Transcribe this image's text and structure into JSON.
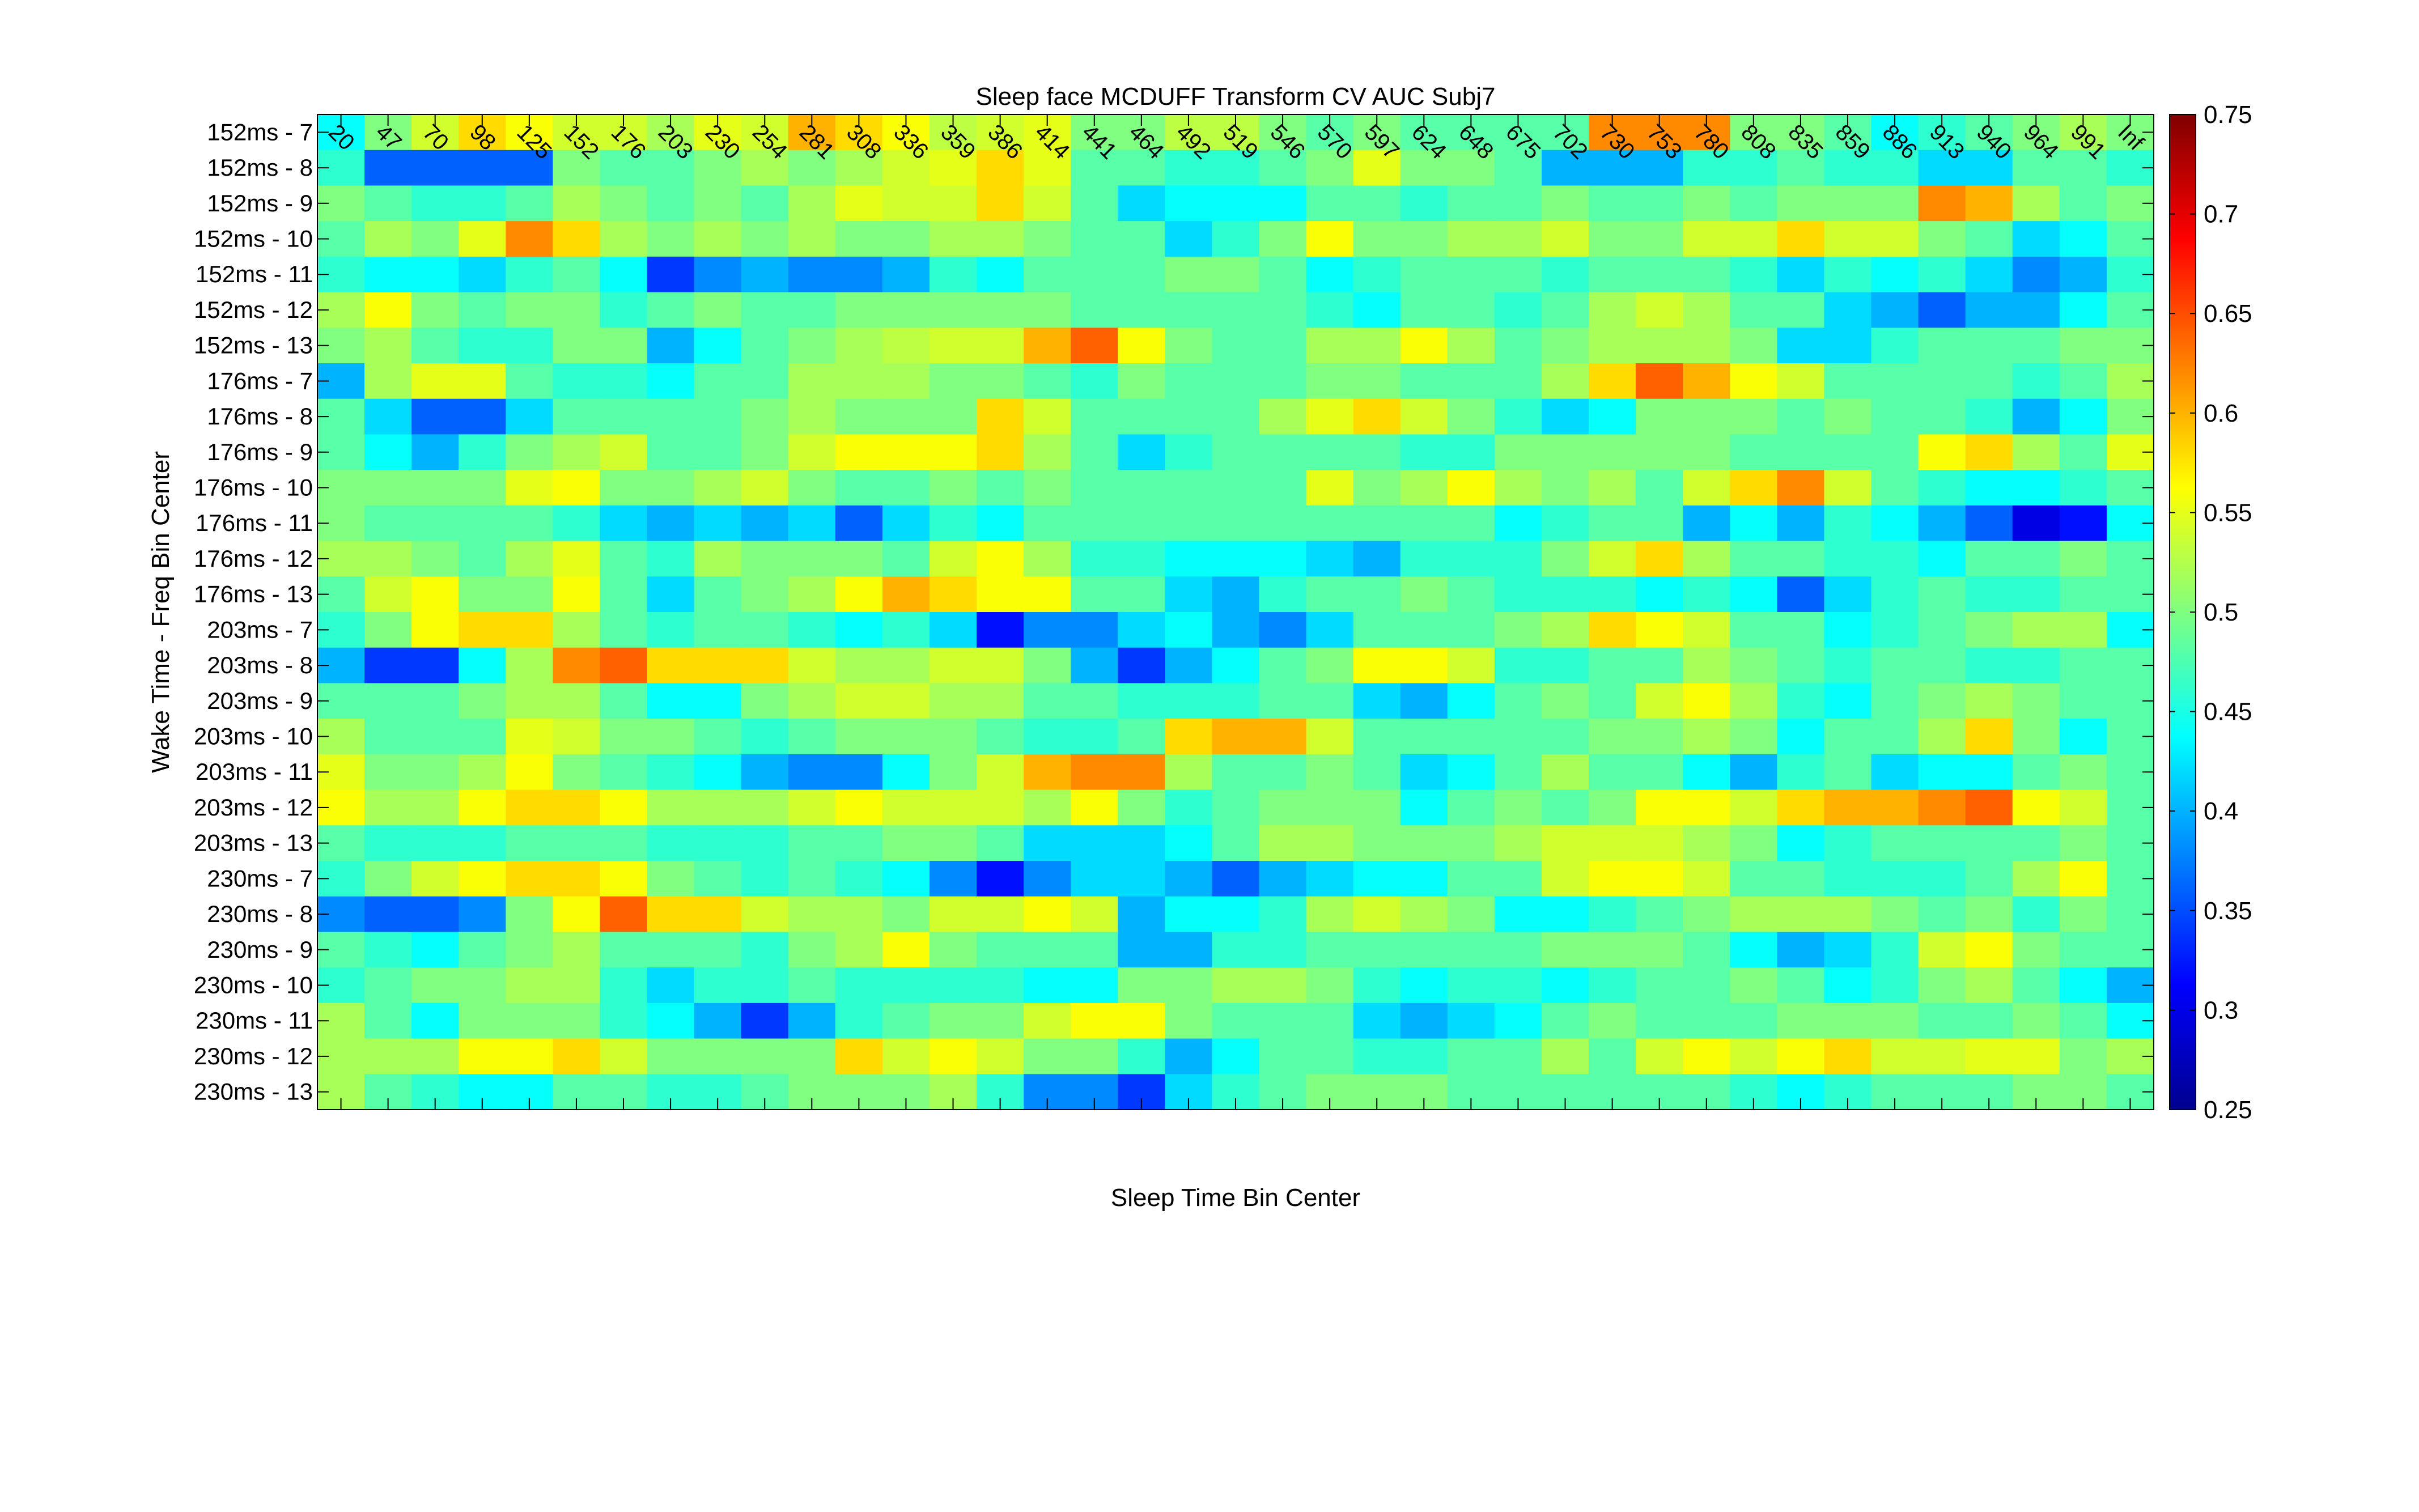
{
  "chart_data": {
    "type": "heatmap",
    "title": "Sleep face MCDUFF Transform CV AUC Subj7",
    "xlabel": "Sleep Time Bin Center",
    "ylabel": "Wake Time - Freq Bin Center",
    "x_categories": [
      "20",
      "47",
      "70",
      "98",
      "125",
      "152",
      "176",
      "203",
      "230",
      "254",
      "281",
      "308",
      "336",
      "359",
      "386",
      "414",
      "441",
      "464",
      "492",
      "519",
      "546",
      "570",
      "597",
      "624",
      "648",
      "675",
      "702",
      "730",
      "753",
      "780",
      "808",
      "835",
      "859",
      "886",
      "913",
      "940",
      "964",
      "991",
      "Inf"
    ],
    "y_categories": [
      "152ms - 7",
      "152ms - 8",
      "152ms - 9",
      "152ms - 10",
      "152ms - 11",
      "152ms - 12",
      "152ms - 13",
      "176ms - 7",
      "176ms - 8",
      "176ms - 9",
      "176ms - 10",
      "176ms - 11",
      "176ms - 12",
      "176ms - 13",
      "203ms - 7",
      "203ms - 8",
      "203ms - 9",
      "203ms - 10",
      "203ms - 11",
      "203ms - 12",
      "203ms - 13",
      "230ms - 7",
      "230ms - 8",
      "230ms - 9",
      "230ms - 10",
      "230ms - 11",
      "230ms - 12",
      "230ms - 13"
    ],
    "colorbar": {
      "ticks": [
        "0.25",
        "0.3",
        "0.35",
        "0.4",
        "0.45",
        "0.5",
        "0.55",
        "0.6",
        "0.65",
        "0.7",
        "0.75"
      ],
      "range": [
        0.25,
        0.75
      ],
      "colormap": "jet"
    },
    "values": [
      [
        0.44,
        0.5,
        0.54,
        0.58,
        0.56,
        0.54,
        0.54,
        0.52,
        0.55,
        0.54,
        0.6,
        0.58,
        0.56,
        0.53,
        0.54,
        0.55,
        0.5,
        0.5,
        0.53,
        0.53,
        0.5,
        0.48,
        0.5,
        0.48,
        0.48,
        0.48,
        0.48,
        0.62,
        0.62,
        0.62,
        0.5,
        0.5,
        0.48,
        0.44,
        0.46,
        0.48,
        0.5,
        0.52,
        0.5
      ],
      [
        0.46,
        0.36,
        0.36,
        0.36,
        0.36,
        0.5,
        0.48,
        0.48,
        0.5,
        0.52,
        0.5,
        0.52,
        0.54,
        0.55,
        0.58,
        0.55,
        0.48,
        0.48,
        0.46,
        0.46,
        0.48,
        0.5,
        0.55,
        0.5,
        0.5,
        0.48,
        0.4,
        0.4,
        0.4,
        0.46,
        0.46,
        0.48,
        0.46,
        0.46,
        0.42,
        0.42,
        0.48,
        0.48,
        0.46
      ],
      [
        0.5,
        0.48,
        0.46,
        0.46,
        0.48,
        0.52,
        0.5,
        0.48,
        0.5,
        0.48,
        0.52,
        0.55,
        0.54,
        0.54,
        0.58,
        0.54,
        0.48,
        0.42,
        0.44,
        0.44,
        0.44,
        0.48,
        0.48,
        0.46,
        0.48,
        0.48,
        0.5,
        0.48,
        0.48,
        0.5,
        0.48,
        0.5,
        0.5,
        0.5,
        0.62,
        0.6,
        0.52,
        0.48,
        0.5
      ],
      [
        0.48,
        0.52,
        0.5,
        0.55,
        0.62,
        0.58,
        0.52,
        0.5,
        0.52,
        0.5,
        0.52,
        0.5,
        0.5,
        0.52,
        0.52,
        0.5,
        0.48,
        0.48,
        0.42,
        0.46,
        0.5,
        0.56,
        0.5,
        0.5,
        0.52,
        0.52,
        0.54,
        0.5,
        0.5,
        0.54,
        0.54,
        0.58,
        0.54,
        0.54,
        0.5,
        0.48,
        0.42,
        0.44,
        0.48
      ],
      [
        0.46,
        0.44,
        0.44,
        0.42,
        0.46,
        0.48,
        0.44,
        0.34,
        0.38,
        0.4,
        0.38,
        0.38,
        0.4,
        0.46,
        0.44,
        0.48,
        0.48,
        0.48,
        0.5,
        0.5,
        0.48,
        0.44,
        0.46,
        0.48,
        0.48,
        0.48,
        0.46,
        0.48,
        0.48,
        0.48,
        0.46,
        0.42,
        0.46,
        0.44,
        0.46,
        0.42,
        0.38,
        0.4,
        0.46
      ],
      [
        0.52,
        0.56,
        0.5,
        0.48,
        0.5,
        0.5,
        0.46,
        0.48,
        0.5,
        0.48,
        0.48,
        0.5,
        0.5,
        0.5,
        0.5,
        0.5,
        0.48,
        0.48,
        0.48,
        0.48,
        0.48,
        0.46,
        0.44,
        0.48,
        0.48,
        0.46,
        0.48,
        0.52,
        0.54,
        0.52,
        0.48,
        0.48,
        0.42,
        0.4,
        0.36,
        0.4,
        0.4,
        0.44,
        0.48
      ],
      [
        0.5,
        0.52,
        0.48,
        0.46,
        0.46,
        0.5,
        0.5,
        0.4,
        0.44,
        0.48,
        0.5,
        0.52,
        0.53,
        0.54,
        0.54,
        0.6,
        0.64,
        0.56,
        0.5,
        0.48,
        0.48,
        0.52,
        0.52,
        0.56,
        0.52,
        0.48,
        0.5,
        0.52,
        0.52,
        0.52,
        0.5,
        0.42,
        0.42,
        0.46,
        0.48,
        0.48,
        0.48,
        0.5,
        0.5
      ],
      [
        0.4,
        0.52,
        0.55,
        0.55,
        0.48,
        0.46,
        0.46,
        0.44,
        0.48,
        0.48,
        0.52,
        0.52,
        0.52,
        0.5,
        0.5,
        0.48,
        0.46,
        0.5,
        0.48,
        0.48,
        0.48,
        0.5,
        0.5,
        0.48,
        0.48,
        0.48,
        0.52,
        0.58,
        0.64,
        0.6,
        0.56,
        0.54,
        0.48,
        0.48,
        0.48,
        0.48,
        0.46,
        0.48,
        0.52
      ],
      [
        0.48,
        0.42,
        0.36,
        0.36,
        0.42,
        0.48,
        0.48,
        0.48,
        0.48,
        0.5,
        0.52,
        0.5,
        0.5,
        0.5,
        0.58,
        0.54,
        0.48,
        0.48,
        0.48,
        0.48,
        0.52,
        0.55,
        0.58,
        0.54,
        0.5,
        0.46,
        0.42,
        0.44,
        0.5,
        0.5,
        0.5,
        0.48,
        0.5,
        0.48,
        0.48,
        0.46,
        0.4,
        0.44,
        0.5
      ],
      [
        0.48,
        0.44,
        0.4,
        0.46,
        0.5,
        0.52,
        0.54,
        0.48,
        0.48,
        0.5,
        0.54,
        0.56,
        0.56,
        0.56,
        0.58,
        0.52,
        0.48,
        0.42,
        0.46,
        0.48,
        0.48,
        0.48,
        0.48,
        0.46,
        0.46,
        0.5,
        0.5,
        0.5,
        0.5,
        0.5,
        0.48,
        0.48,
        0.48,
        0.48,
        0.56,
        0.58,
        0.52,
        0.48,
        0.55
      ],
      [
        0.5,
        0.5,
        0.5,
        0.5,
        0.55,
        0.56,
        0.5,
        0.5,
        0.52,
        0.54,
        0.5,
        0.48,
        0.48,
        0.5,
        0.48,
        0.5,
        0.48,
        0.48,
        0.48,
        0.48,
        0.48,
        0.55,
        0.5,
        0.52,
        0.56,
        0.52,
        0.5,
        0.52,
        0.48,
        0.54,
        0.58,
        0.62,
        0.54,
        0.48,
        0.46,
        0.44,
        0.44,
        0.46,
        0.48
      ],
      [
        0.5,
        0.48,
        0.48,
        0.48,
        0.48,
        0.46,
        0.42,
        0.4,
        0.42,
        0.4,
        0.42,
        0.36,
        0.42,
        0.46,
        0.44,
        0.48,
        0.48,
        0.48,
        0.48,
        0.48,
        0.48,
        0.48,
        0.48,
        0.48,
        0.48,
        0.44,
        0.46,
        0.48,
        0.48,
        0.4,
        0.44,
        0.4,
        0.46,
        0.44,
        0.4,
        0.36,
        0.3,
        0.32,
        0.44
      ],
      [
        0.52,
        0.52,
        0.5,
        0.48,
        0.52,
        0.55,
        0.48,
        0.46,
        0.52,
        0.5,
        0.5,
        0.5,
        0.48,
        0.54,
        0.56,
        0.52,
        0.46,
        0.46,
        0.44,
        0.44,
        0.44,
        0.42,
        0.4,
        0.46,
        0.46,
        0.46,
        0.5,
        0.54,
        0.58,
        0.52,
        0.48,
        0.48,
        0.46,
        0.46,
        0.44,
        0.48,
        0.48,
        0.5,
        0.48
      ],
      [
        0.48,
        0.54,
        0.56,
        0.5,
        0.5,
        0.56,
        0.48,
        0.42,
        0.48,
        0.5,
        0.52,
        0.56,
        0.6,
        0.58,
        0.56,
        0.56,
        0.48,
        0.48,
        0.42,
        0.4,
        0.46,
        0.48,
        0.48,
        0.5,
        0.48,
        0.46,
        0.46,
        0.46,
        0.44,
        0.46,
        0.44,
        0.36,
        0.42,
        0.46,
        0.48,
        0.46,
        0.46,
        0.48,
        0.48
      ],
      [
        0.46,
        0.5,
        0.56,
        0.58,
        0.58,
        0.52,
        0.48,
        0.46,
        0.48,
        0.48,
        0.46,
        0.44,
        0.46,
        0.42,
        0.32,
        0.38,
        0.38,
        0.42,
        0.44,
        0.4,
        0.38,
        0.42,
        0.48,
        0.48,
        0.48,
        0.5,
        0.52,
        0.58,
        0.56,
        0.54,
        0.48,
        0.48,
        0.44,
        0.46,
        0.48,
        0.5,
        0.52,
        0.52,
        0.44
      ],
      [
        0.4,
        0.34,
        0.34,
        0.44,
        0.52,
        0.62,
        0.64,
        0.58,
        0.58,
        0.58,
        0.54,
        0.52,
        0.52,
        0.54,
        0.54,
        0.5,
        0.4,
        0.34,
        0.4,
        0.44,
        0.48,
        0.5,
        0.56,
        0.56,
        0.54,
        0.46,
        0.46,
        0.48,
        0.48,
        0.52,
        0.5,
        0.48,
        0.46,
        0.48,
        0.48,
        0.46,
        0.46,
        0.48,
        0.48
      ],
      [
        0.48,
        0.48,
        0.48,
        0.5,
        0.52,
        0.52,
        0.48,
        0.44,
        0.44,
        0.5,
        0.52,
        0.54,
        0.54,
        0.52,
        0.52,
        0.48,
        0.48,
        0.46,
        0.46,
        0.46,
        0.48,
        0.48,
        0.42,
        0.4,
        0.44,
        0.48,
        0.5,
        0.48,
        0.54,
        0.56,
        0.52,
        0.46,
        0.44,
        0.48,
        0.5,
        0.52,
        0.5,
        0.48,
        0.48
      ],
      [
        0.52,
        0.48,
        0.48,
        0.48,
        0.55,
        0.54,
        0.5,
        0.5,
        0.48,
        0.46,
        0.48,
        0.5,
        0.5,
        0.5,
        0.48,
        0.46,
        0.46,
        0.48,
        0.58,
        0.6,
        0.6,
        0.54,
        0.48,
        0.48,
        0.48,
        0.48,
        0.48,
        0.5,
        0.5,
        0.52,
        0.5,
        0.44,
        0.48,
        0.48,
        0.52,
        0.58,
        0.5,
        0.44,
        0.48
      ],
      [
        0.55,
        0.5,
        0.5,
        0.52,
        0.56,
        0.5,
        0.48,
        0.46,
        0.44,
        0.4,
        0.38,
        0.38,
        0.44,
        0.5,
        0.54,
        0.6,
        0.62,
        0.62,
        0.52,
        0.48,
        0.48,
        0.5,
        0.48,
        0.42,
        0.44,
        0.48,
        0.52,
        0.48,
        0.48,
        0.44,
        0.4,
        0.46,
        0.48,
        0.42,
        0.44,
        0.44,
        0.48,
        0.5,
        0.48
      ],
      [
        0.56,
        0.52,
        0.52,
        0.56,
        0.58,
        0.58,
        0.56,
        0.52,
        0.52,
        0.52,
        0.54,
        0.56,
        0.54,
        0.54,
        0.54,
        0.52,
        0.56,
        0.5,
        0.46,
        0.48,
        0.5,
        0.5,
        0.5,
        0.44,
        0.48,
        0.5,
        0.48,
        0.5,
        0.56,
        0.56,
        0.54,
        0.58,
        0.6,
        0.6,
        0.62,
        0.64,
        0.56,
        0.54,
        0.48
      ],
      [
        0.48,
        0.46,
        0.46,
        0.46,
        0.48,
        0.48,
        0.48,
        0.46,
        0.46,
        0.46,
        0.48,
        0.48,
        0.5,
        0.5,
        0.48,
        0.42,
        0.42,
        0.42,
        0.44,
        0.48,
        0.52,
        0.52,
        0.5,
        0.5,
        0.5,
        0.52,
        0.54,
        0.54,
        0.54,
        0.52,
        0.5,
        0.44,
        0.46,
        0.48,
        0.48,
        0.48,
        0.48,
        0.5,
        0.48
      ],
      [
        0.46,
        0.5,
        0.54,
        0.56,
        0.58,
        0.58,
        0.56,
        0.5,
        0.48,
        0.46,
        0.48,
        0.46,
        0.44,
        0.38,
        0.32,
        0.38,
        0.42,
        0.42,
        0.4,
        0.36,
        0.4,
        0.42,
        0.44,
        0.44,
        0.48,
        0.48,
        0.54,
        0.56,
        0.56,
        0.54,
        0.48,
        0.48,
        0.46,
        0.46,
        0.46,
        0.48,
        0.52,
        0.56,
        0.48
      ],
      [
        0.38,
        0.36,
        0.36,
        0.38,
        0.5,
        0.56,
        0.64,
        0.58,
        0.58,
        0.54,
        0.52,
        0.52,
        0.5,
        0.54,
        0.54,
        0.56,
        0.54,
        0.4,
        0.44,
        0.44,
        0.46,
        0.52,
        0.54,
        0.52,
        0.5,
        0.44,
        0.44,
        0.46,
        0.48,
        0.5,
        0.52,
        0.52,
        0.52,
        0.5,
        0.48,
        0.5,
        0.46,
        0.5,
        0.48
      ],
      [
        0.48,
        0.46,
        0.44,
        0.48,
        0.5,
        0.52,
        0.48,
        0.48,
        0.48,
        0.46,
        0.5,
        0.52,
        0.56,
        0.5,
        0.48,
        0.48,
        0.48,
        0.4,
        0.4,
        0.46,
        0.46,
        0.48,
        0.48,
        0.48,
        0.48,
        0.48,
        0.5,
        0.5,
        0.5,
        0.48,
        0.44,
        0.4,
        0.42,
        0.46,
        0.54,
        0.56,
        0.5,
        0.48,
        0.48
      ],
      [
        0.46,
        0.48,
        0.5,
        0.5,
        0.52,
        0.52,
        0.46,
        0.42,
        0.46,
        0.46,
        0.48,
        0.46,
        0.46,
        0.46,
        0.46,
        0.44,
        0.44,
        0.5,
        0.5,
        0.52,
        0.52,
        0.5,
        0.46,
        0.44,
        0.46,
        0.46,
        0.44,
        0.46,
        0.48,
        0.48,
        0.5,
        0.48,
        0.44,
        0.46,
        0.5,
        0.52,
        0.48,
        0.44,
        0.4
      ],
      [
        0.52,
        0.48,
        0.44,
        0.5,
        0.5,
        0.5,
        0.46,
        0.44,
        0.4,
        0.34,
        0.4,
        0.46,
        0.48,
        0.5,
        0.5,
        0.54,
        0.56,
        0.56,
        0.5,
        0.48,
        0.48,
        0.48,
        0.42,
        0.4,
        0.42,
        0.44,
        0.48,
        0.5,
        0.48,
        0.48,
        0.48,
        0.5,
        0.5,
        0.5,
        0.48,
        0.48,
        0.5,
        0.48,
        0.44
      ],
      [
        0.52,
        0.52,
        0.52,
        0.56,
        0.56,
        0.58,
        0.54,
        0.5,
        0.5,
        0.5,
        0.5,
        0.58,
        0.54,
        0.56,
        0.54,
        0.5,
        0.5,
        0.46,
        0.4,
        0.44,
        0.48,
        0.48,
        0.46,
        0.46,
        0.48,
        0.48,
        0.52,
        0.48,
        0.54,
        0.56,
        0.54,
        0.56,
        0.58,
        0.54,
        0.54,
        0.55,
        0.55,
        0.5,
        0.52
      ],
      [
        0.52,
        0.48,
        0.46,
        0.44,
        0.44,
        0.48,
        0.48,
        0.46,
        0.46,
        0.48,
        0.5,
        0.5,
        0.5,
        0.52,
        0.46,
        0.38,
        0.38,
        0.34,
        0.42,
        0.46,
        0.48,
        0.5,
        0.5,
        0.5,
        0.48,
        0.48,
        0.48,
        0.48,
        0.48,
        0.48,
        0.46,
        0.44,
        0.46,
        0.48,
        0.48,
        0.48,
        0.5,
        0.5,
        0.48
      ]
    ]
  }
}
